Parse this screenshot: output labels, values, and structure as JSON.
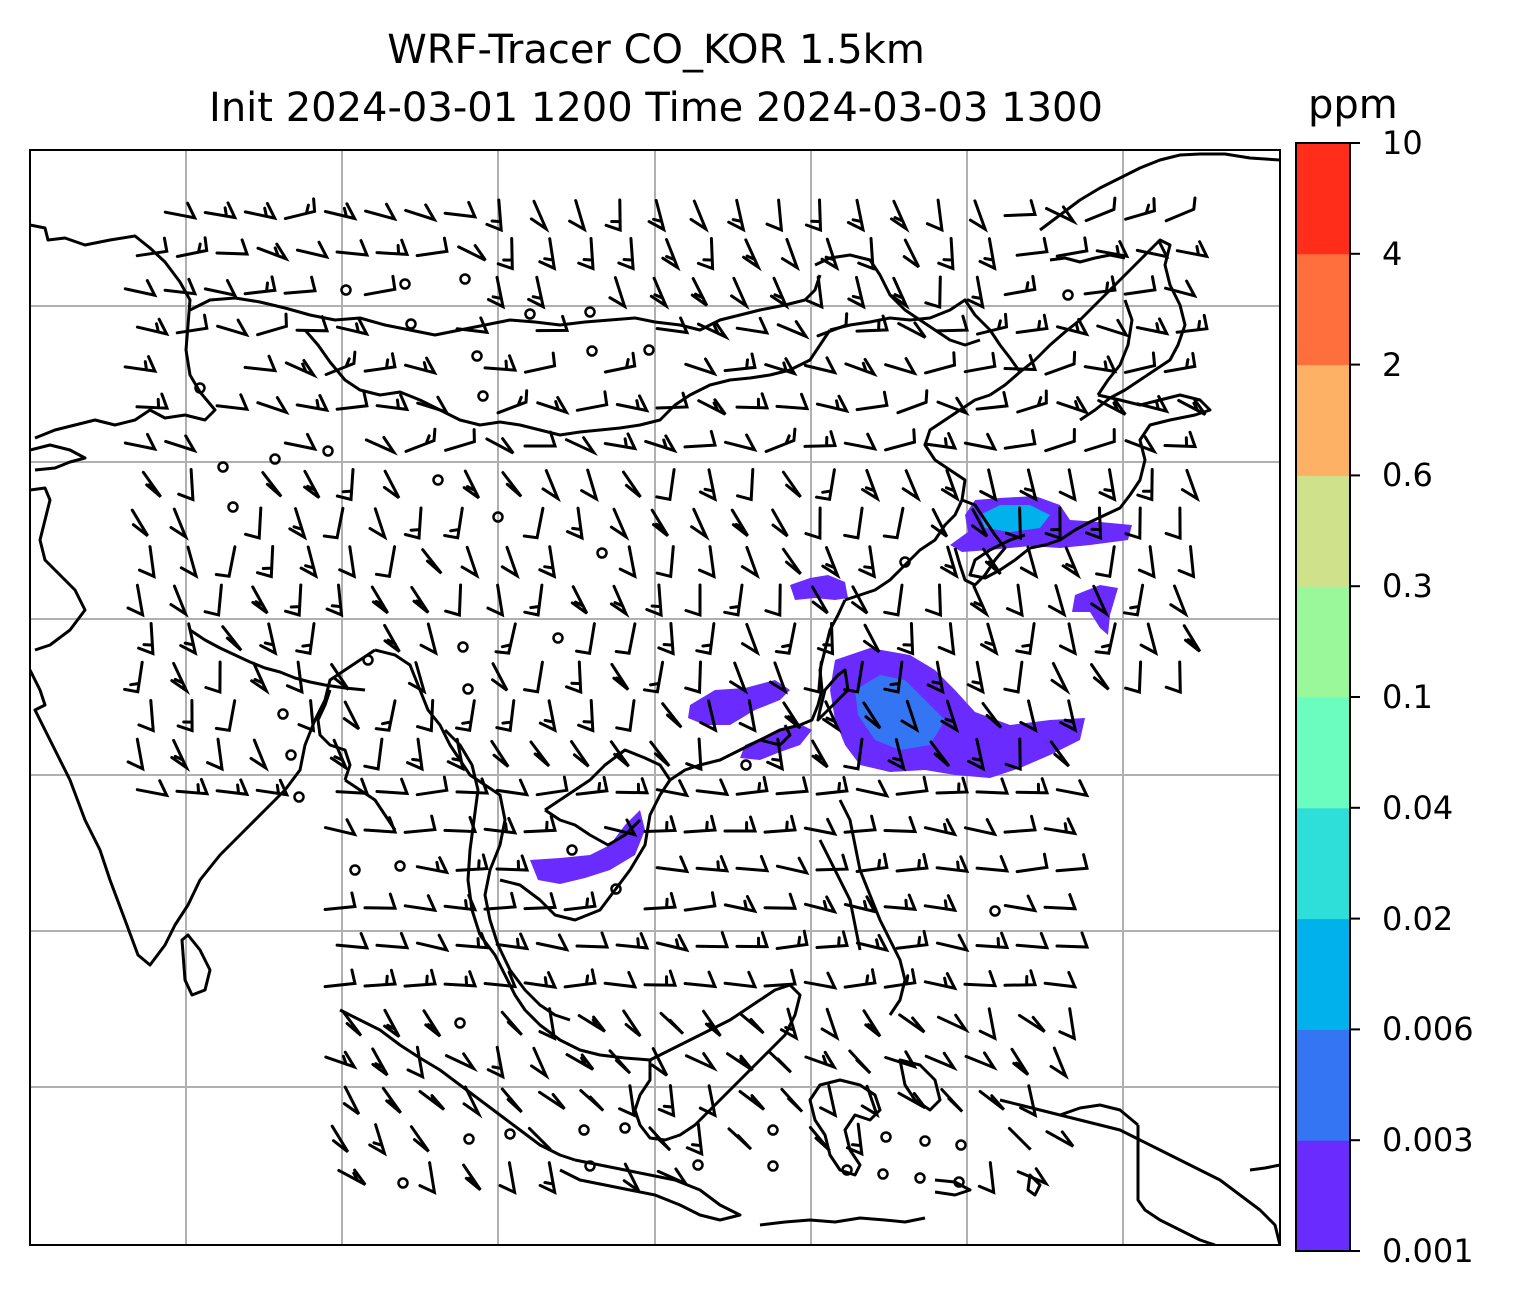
{
  "title": {
    "line1": "WRF-Tracer CO_KOR 1.5km",
    "line2": "Init 2024-03-01 1200 Time 2024-03-03 1300"
  },
  "colorbar": {
    "units": "ppm",
    "levels": [
      "0.001",
      "0.003",
      "0.006",
      "0.02",
      "0.04",
      "0.1",
      "0.3",
      "0.6",
      "2",
      "4",
      "10"
    ],
    "colors": [
      "#6a2bff",
      "#3475f4",
      "#00b1ec",
      "#2ddfd8",
      "#6bfcc0",
      "#9af79a",
      "#cfe18a",
      "#fdb165",
      "#ff6f3d",
      "#ff2d19"
    ]
  },
  "map": {
    "plume_color": "#6a2bff",
    "plume_inner_color": "#3475f4",
    "plume_core_color": "#00b1ec",
    "calm_symbol": "circle"
  }
}
